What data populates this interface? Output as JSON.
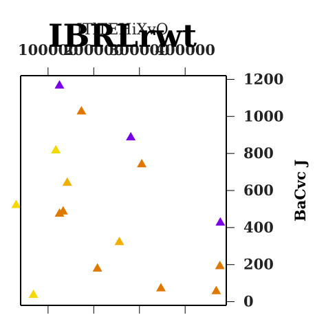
{
  "chart_data": {
    "type": "scatter",
    "title": "IBRLrwt",
    "subtitle": "ITlTEHiXvO",
    "xlabel": "",
    "ylabel": "BaCvc J",
    "xlim": [
      40000,
      490000
    ],
    "ylim": [
      -20,
      1220
    ],
    "x_ticks": [
      100000,
      200000,
      300000,
      400000
    ],
    "x_tick_labels": [
      "100000",
      "200000",
      "300000",
      "400000"
    ],
    "x_axis_position": "top",
    "y_ticks": [
      0,
      200,
      400,
      600,
      800,
      1000,
      1200
    ],
    "y_tick_labels": [
      "0",
      "200",
      "400",
      "600",
      "800",
      "1000",
      "1200"
    ],
    "y_axis_position": "right",
    "grid": false,
    "legend": "none",
    "marker": "triangle-up",
    "points": [
      {
        "x": 125000,
        "y": 1170,
        "color": "#7a00e6"
      },
      {
        "x": 173000,
        "y": 1030,
        "color": "#e07800"
      },
      {
        "x": 281000,
        "y": 890,
        "color": "#7a00e6"
      },
      {
        "x": 117000,
        "y": 820,
        "color": "#f5d800"
      },
      {
        "x": 305000,
        "y": 745,
        "color": "#e07800"
      },
      {
        "x": 142000,
        "y": 645,
        "color": "#f0b000"
      },
      {
        "x": 30000,
        "y": 525,
        "color": "#f5d800"
      },
      {
        "x": 133000,
        "y": 490,
        "color": "#e07800"
      },
      {
        "x": 125000,
        "y": 478,
        "color": "#e07800"
      },
      {
        "x": 477000,
        "y": 430,
        "color": "#7a00e6"
      },
      {
        "x": 256000,
        "y": 325,
        "color": "#f0b000"
      },
      {
        "x": 208000,
        "y": 182,
        "color": "#e07800"
      },
      {
        "x": 476000,
        "y": 195,
        "color": "#e07800"
      },
      {
        "x": 347000,
        "y": 75,
        "color": "#e07800"
      },
      {
        "x": 468000,
        "y": 60,
        "color": "#e07800"
      },
      {
        "x": 68000,
        "y": 40,
        "color": "#f5d800"
      }
    ]
  }
}
